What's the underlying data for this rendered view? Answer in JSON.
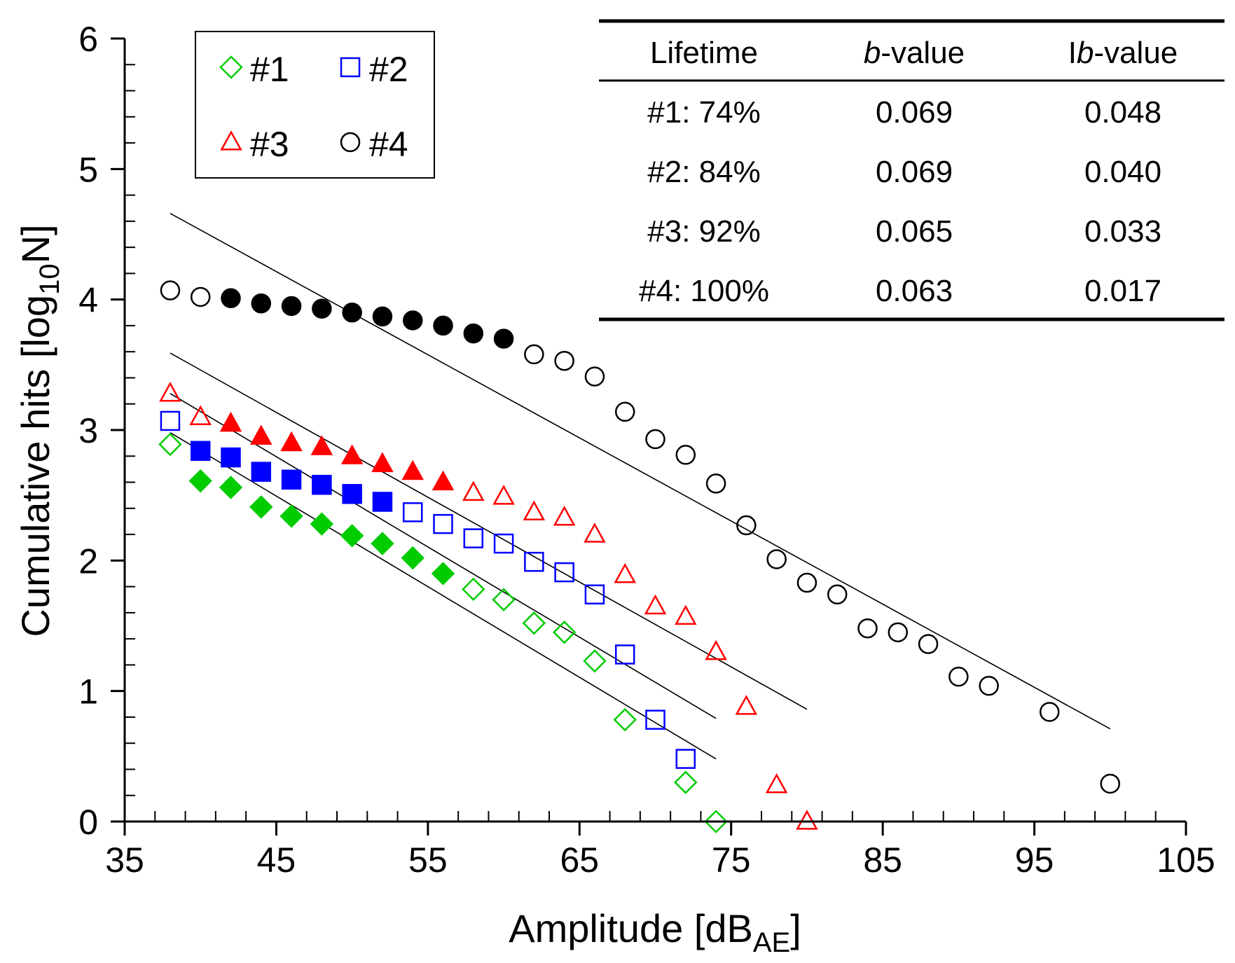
{
  "chart_data": {
    "type": "scatter",
    "xlabel": "Amplitude [dB",
    "xlabel_sub": "AE",
    "xlabel_close": "]",
    "ylabel": "Cumulative hits [log",
    "ylabel_sub": "10",
    "ylabel_close": "N]",
    "xlim": [
      35,
      105
    ],
    "ylim": [
      0,
      6
    ],
    "xticks": [
      35,
      45,
      55,
      65,
      75,
      85,
      95,
      105
    ],
    "yticks": [
      0,
      1,
      2,
      3,
      4,
      5,
      6
    ],
    "legend_position": "top-left",
    "series": [
      {
        "name": "#1",
        "marker": "diamond",
        "color": "#00cc00",
        "x": [
          38,
          40,
          42,
          44,
          46,
          48,
          50,
          52,
          54,
          56,
          58,
          60,
          62,
          64,
          66,
          68,
          72,
          74
        ],
        "y": [
          2.89,
          2.61,
          2.56,
          2.41,
          2.34,
          2.28,
          2.19,
          2.13,
          2.02,
          1.9,
          1.78,
          1.7,
          1.52,
          1.45,
          1.23,
          0.78,
          0.3,
          0.0
        ],
        "filled": [
          false,
          true,
          true,
          true,
          true,
          true,
          true,
          true,
          true,
          true,
          false,
          false,
          false,
          false,
          false,
          false,
          false,
          false
        ],
        "fit": {
          "x": [
            38,
            74
          ],
          "y": [
            2.98,
            0.48
          ]
        }
      },
      {
        "name": "#2",
        "marker": "square",
        "color": "#0000ff",
        "x": [
          38,
          40,
          42,
          44,
          46,
          48,
          50,
          52,
          54,
          56,
          58,
          60,
          62,
          64,
          66,
          68,
          70,
          72
        ],
        "y": [
          3.07,
          2.84,
          2.79,
          2.68,
          2.62,
          2.58,
          2.51,
          2.45,
          2.37,
          2.28,
          2.17,
          2.13,
          1.99,
          1.91,
          1.74,
          1.28,
          0.78,
          0.48
        ],
        "filled": [
          false,
          true,
          true,
          true,
          true,
          true,
          true,
          true,
          false,
          false,
          false,
          false,
          false,
          false,
          false,
          false,
          false,
          false
        ],
        "fit": {
          "x": [
            38,
            74
          ],
          "y": [
            3.28,
            0.79
          ]
        }
      },
      {
        "name": "#3",
        "marker": "triangle",
        "color": "#ff0000",
        "x": [
          38,
          40,
          42,
          44,
          46,
          48,
          50,
          52,
          54,
          56,
          58,
          60,
          62,
          64,
          66,
          68,
          70,
          72,
          74,
          76,
          78,
          80
        ],
        "y": [
          3.28,
          3.1,
          3.05,
          2.95,
          2.9,
          2.87,
          2.8,
          2.74,
          2.68,
          2.6,
          2.52,
          2.49,
          2.37,
          2.33,
          2.2,
          1.89,
          1.65,
          1.57,
          1.3,
          0.88,
          0.28,
          0.0
        ],
        "filled": [
          false,
          false,
          true,
          true,
          true,
          true,
          true,
          true,
          true,
          true,
          false,
          false,
          false,
          false,
          false,
          false,
          false,
          false,
          false,
          false,
          false,
          false
        ],
        "fit": {
          "x": [
            38,
            80
          ],
          "y": [
            3.59,
            0.86
          ]
        }
      },
      {
        "name": "#4",
        "marker": "circle",
        "color": "#000000",
        "x": [
          38,
          40,
          42,
          44,
          46,
          48,
          50,
          52,
          54,
          56,
          58,
          60,
          62,
          64,
          66,
          68,
          70,
          72,
          74,
          76,
          78,
          80,
          82,
          84,
          86,
          88,
          90,
          92,
          96,
          100
        ],
        "y": [
          4.07,
          4.02,
          4.01,
          3.97,
          3.95,
          3.93,
          3.9,
          3.87,
          3.84,
          3.8,
          3.74,
          3.7,
          3.58,
          3.53,
          3.41,
          3.14,
          2.93,
          2.81,
          2.59,
          2.27,
          2.01,
          1.83,
          1.74,
          1.48,
          1.45,
          1.36,
          1.11,
          1.04,
          0.84,
          0.29
        ],
        "filled": [
          false,
          false,
          true,
          true,
          true,
          true,
          true,
          true,
          true,
          true,
          true,
          true,
          false,
          false,
          false,
          false,
          false,
          false,
          false,
          false,
          false,
          false,
          false,
          false,
          false,
          false,
          false,
          false,
          false,
          false
        ],
        "fit": {
          "x": [
            38,
            100
          ],
          "y": [
            4.66,
            0.71
          ]
        }
      }
    ],
    "table": {
      "headers": [
        {
          "plain_before": "",
          "italic": "",
          "plain_after": "Lifetime"
        },
        {
          "plain_before": "",
          "italic": "b",
          "plain_after": "-value"
        },
        {
          "plain_before": "I",
          "italic": "b",
          "plain_after": "-value"
        }
      ],
      "rows": [
        [
          "#1: 74%",
          "0.069",
          "0.048"
        ],
        [
          "#2: 84%",
          "0.069",
          "0.040"
        ],
        [
          "#3: 92%",
          "0.065",
          "0.033"
        ],
        [
          "#4: 100%",
          "0.063",
          "0.017"
        ]
      ]
    }
  }
}
